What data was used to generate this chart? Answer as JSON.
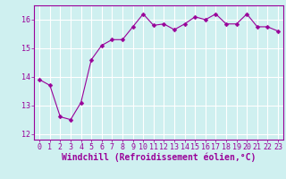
{
  "x": [
    0,
    1,
    2,
    3,
    4,
    5,
    6,
    7,
    8,
    9,
    10,
    11,
    12,
    13,
    14,
    15,
    16,
    17,
    18,
    19,
    20,
    21,
    22,
    23
  ],
  "y": [
    13.9,
    13.7,
    12.6,
    12.5,
    13.1,
    14.6,
    15.1,
    15.3,
    15.3,
    15.75,
    16.2,
    15.8,
    15.85,
    15.65,
    15.85,
    16.1,
    16.0,
    16.2,
    15.85,
    15.85,
    16.2,
    15.75,
    15.75,
    15.6
  ],
  "line_color": "#990099",
  "marker": "D",
  "marker_size": 2.5,
  "bg_color": "#cff0f0",
  "grid_color": "#ffffff",
  "xlabel": "Windchill (Refroidissement éolien,°C)",
  "xlabel_fontsize": 7,
  "tick_fontsize": 6,
  "ylim": [
    11.8,
    16.5
  ],
  "yticks": [
    12,
    13,
    14,
    15,
    16
  ],
  "xticks": [
    0,
    1,
    2,
    3,
    4,
    5,
    6,
    7,
    8,
    9,
    10,
    11,
    12,
    13,
    14,
    15,
    16,
    17,
    18,
    19,
    20,
    21,
    22,
    23
  ]
}
